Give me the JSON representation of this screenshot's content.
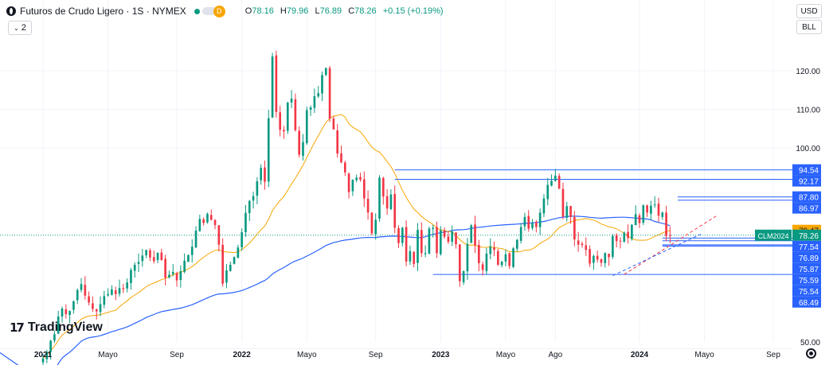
{
  "header": {
    "symbol_title": "Futuros de Crudo Ligero · 1S · NYMEX",
    "delayed_badge": "D",
    "ohlc": [
      {
        "k": "O",
        "v": "78.16"
      },
      {
        "k": "H",
        "v": "79.96"
      },
      {
        "k": "L",
        "v": "76.89"
      },
      {
        "k": "C",
        "v": "78.26"
      },
      {
        "k": "",
        "v": "+0.15 (+0.19%)"
      }
    ],
    "collapse_label": "2"
  },
  "axis_controls": {
    "currency": "USD",
    "unit": "BLL"
  },
  "branding": {
    "logo_text": "TradingView"
  },
  "colors": {
    "up": "#089981",
    "down": "#f23645",
    "sma_short": "#f7a600",
    "sma_long": "#2962ff",
    "hline": "#2962ff"
  },
  "chart_data": {
    "type": "candlestick",
    "title": "Futuros de Crudo Ligero",
    "interval": "1S",
    "exchange": "NYMEX",
    "x_ticks": [
      {
        "label": "2021",
        "t": 0,
        "bold": true
      },
      {
        "label": "Mayo",
        "t": 17
      },
      {
        "label": "Sep",
        "t": 35
      },
      {
        "label": "2022",
        "t": 52,
        "bold": true
      },
      {
        "label": "Mayo",
        "t": 69
      },
      {
        "label": "Sep",
        "t": 87
      },
      {
        "label": "2023",
        "t": 104,
        "bold": true
      },
      {
        "label": "Mayo",
        "t": 121
      },
      {
        "label": "Ago",
        "t": 134
      },
      {
        "label": "2024",
        "t": 156,
        "bold": true
      },
      {
        "label": "Mayo",
        "t": 173
      },
      {
        "label": "Sep",
        "t": 191
      }
    ],
    "y_ticks": [
      50,
      100,
      110,
      120
    ],
    "y_range": [
      50,
      130
    ],
    "price_levels": [
      {
        "label": "94.54",
        "value": 94.54,
        "from_t": 92
      },
      {
        "label": "92.17",
        "value": 92.17,
        "from_t": 92
      },
      {
        "label": "87.80",
        "value": 87.8,
        "from_t": 166
      },
      {
        "label": "86.97",
        "value": 86.97,
        "from_t": 166
      },
      {
        "label": "77.54",
        "value": 77.54,
        "from_t": 162
      },
      {
        "label": "76.89",
        "value": 76.89,
        "from_t": 162
      },
      {
        "label": "75.87",
        "value": 75.87,
        "from_t": 162
      },
      {
        "label": "75.59",
        "value": 75.59,
        "from_t": 162
      },
      {
        "label": "75.54",
        "value": 75.54,
        "from_t": 162
      },
      {
        "label": "68.49",
        "value": 68.49,
        "from_t": 102
      }
    ],
    "current_price": {
      "value": 78.26,
      "label": "78.26",
      "contract": "CLM2024"
    },
    "sma_short_last": {
      "value": 79.47,
      "label": "79.47"
    },
    "weekly_closes": [
      47.6,
      49.2,
      52.0,
      53.6,
      58.0,
      60.0,
      58.6,
      59.4,
      61.8,
      64.6,
      66.1,
      63.2,
      61.5,
      59.9,
      59.3,
      61.1,
      63.1,
      63.6,
      64.8,
      63.6,
      65.1,
      64.8,
      66.5,
      69.6,
      70.9,
      71.6,
      73.2,
      74.6,
      72.7,
      71.8,
      73.9,
      72.1,
      67.7,
      68.4,
      69.1,
      67.0,
      69.3,
      71.9,
      73.3,
      75.4,
      79.4,
      82.3,
      81.3,
      83.6,
      82.1,
      80.8,
      75.9,
      66.2,
      69.5,
      70.9,
      72.8,
      75.2,
      79.0,
      83.8,
      86.8,
      88.0,
      91.7,
      95.0,
      91.6,
      107.7,
      123.7,
      109.3,
      104.7,
      104.3,
      111.8,
      112.8,
      104.6,
      98.3,
      101.5,
      109.8,
      110.5,
      113.4,
      114.2,
      118.9,
      120.7,
      107.6,
      104.8,
      98.6,
      96.4,
      93.9,
      89.0,
      92.1,
      92.6,
      92.1,
      87.4,
      83.9,
      78.7,
      82.1,
      92.6,
      87.9,
      84.9,
      88.4,
      80.1,
      76.3,
      80.1,
      71.7,
      74.3,
      71.1,
      79.6,
      73.8,
      73.8,
      79.9,
      80.1,
      73.8,
      79.5,
      77.9,
      76.6,
      79.2,
      76.0,
      66.8,
      69.3,
      76.1,
      80.7,
      75.7,
      71.3,
      69.6,
      73.7,
      75.4,
      74.6,
      70.9,
      71.7,
      73.5,
      70.6,
      75.0,
      77.1,
      80.3,
      82.8,
      79.9,
      81.3,
      80.3,
      83.9,
      87.4,
      90.8,
      91.8,
      93.1,
      89.8,
      82.9,
      85.5,
      82.8,
      77.2,
      75.9,
      75.8,
      74.6,
      71.2,
      73.1,
      72.2,
      71.4,
      73.8,
      72.8,
      78.0,
      76.8,
      76.8,
      78.9,
      77.6,
      80.9,
      83.5,
      81.3,
      85.7,
      83.9,
      85.6,
      85.9,
      83.1,
      83.9,
      78.1,
      78.26
    ]
  }
}
